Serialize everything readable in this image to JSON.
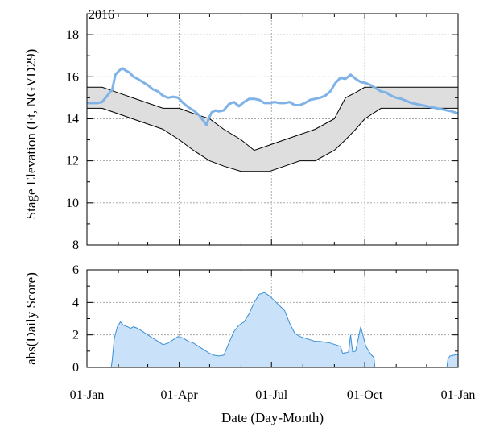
{
  "chart_data": [
    {
      "type": "line",
      "title": "2016",
      "ylabel": "Stage Elevation (Ft, NGVD29)",
      "xlabel": "",
      "xlim": [
        0,
        366
      ],
      "ylim": [
        8,
        19
      ],
      "yticks": [
        8,
        10,
        12,
        14,
        16,
        18
      ],
      "grid": true,
      "envelope": {
        "x": [
          0,
          15,
          30,
          45,
          60,
          75,
          91,
          105,
          121,
          135,
          152,
          165,
          180,
          195,
          210,
          225,
          244,
          255,
          265,
          274,
          290,
          305,
          320,
          335,
          350,
          366
        ],
        "upper": [
          15.5,
          15.5,
          15.25,
          15.0,
          14.75,
          14.5,
          14.5,
          14.25,
          14.0,
          13.5,
          13.0,
          12.5,
          12.75,
          13.0,
          13.25,
          13.5,
          14.0,
          15.0,
          15.25,
          15.5,
          15.5,
          15.5,
          15.5,
          15.5,
          15.5,
          15.5
        ],
        "lower": [
          14.5,
          14.5,
          14.25,
          14.0,
          13.75,
          13.5,
          13.0,
          12.5,
          12.0,
          11.75,
          11.5,
          11.5,
          11.5,
          11.75,
          12.0,
          12.0,
          12.5,
          13.0,
          13.5,
          14.0,
          14.5,
          14.5,
          14.5,
          14.5,
          14.5,
          14.5
        ]
      },
      "series": [
        {
          "color": "#7fb3e8",
          "x": [
            0,
            10,
            15,
            20,
            25,
            28,
            32,
            35,
            38,
            42,
            46,
            50,
            55,
            60,
            65,
            70,
            75,
            80,
            85,
            90,
            95,
            100,
            105,
            110,
            115,
            118,
            120,
            123,
            127,
            130,
            135,
            140,
            145,
            150,
            155,
            160,
            165,
            170,
            175,
            180,
            185,
            190,
            195,
            200,
            205,
            210,
            215,
            220,
            225,
            230,
            235,
            240,
            245,
            250,
            255,
            260,
            265,
            270,
            275,
            280,
            285,
            290,
            295,
            300,
            305,
            310,
            315,
            320,
            325,
            330,
            335,
            340,
            345,
            350,
            355,
            360,
            366
          ],
          "y": [
            14.75,
            14.75,
            14.8,
            15.1,
            15.4,
            16.1,
            16.3,
            16.4,
            16.3,
            16.2,
            16.0,
            15.9,
            15.75,
            15.6,
            15.4,
            15.3,
            15.1,
            15.0,
            15.05,
            15.0,
            14.75,
            14.55,
            14.4,
            14.2,
            13.9,
            13.7,
            14.0,
            14.3,
            14.4,
            14.35,
            14.4,
            14.7,
            14.8,
            14.6,
            14.8,
            14.95,
            14.95,
            14.9,
            14.75,
            14.75,
            14.8,
            14.75,
            14.75,
            14.8,
            14.65,
            14.65,
            14.75,
            14.9,
            14.95,
            15.0,
            15.1,
            15.3,
            15.7,
            15.95,
            15.9,
            16.1,
            15.9,
            15.75,
            15.7,
            15.6,
            15.45,
            15.3,
            15.25,
            15.1,
            15.0,
            14.95,
            14.85,
            14.75,
            14.7,
            14.65,
            14.6,
            14.55,
            14.5,
            14.45,
            14.4,
            14.35,
            14.25
          ]
        }
      ]
    },
    {
      "type": "area",
      "title": "",
      "ylabel": "abs(Daily Score)",
      "xlabel": "Date (Day-Month)",
      "xlim": [
        0,
        366
      ],
      "ylim": [
        0,
        6
      ],
      "yticks": [
        0,
        2,
        4,
        6
      ],
      "grid": true,
      "categories": [
        "01-Jan",
        "01-Apr",
        "01-Jul",
        "01-Oct",
        "01-Jan"
      ],
      "category_x": [
        0,
        91,
        182,
        274,
        366
      ],
      "minor_x": [
        31,
        60,
        121,
        152,
        213,
        244,
        305,
        335
      ],
      "series": [
        {
          "color": "#c9e2fa",
          "x": [
            0,
            24,
            25,
            27,
            30,
            33,
            36,
            40,
            43,
            46,
            50,
            55,
            60,
            65,
            70,
            75,
            80,
            85,
            90,
            95,
            100,
            105,
            110,
            115,
            120,
            125,
            130,
            135,
            140,
            145,
            150,
            155,
            160,
            165,
            170,
            175,
            180,
            185,
            190,
            195,
            200,
            205,
            210,
            215,
            220,
            225,
            230,
            235,
            240,
            245,
            250,
            252,
            253,
            254,
            256,
            258,
            260,
            262,
            265,
            270,
            275,
            280,
            283,
            284,
            355,
            356,
            358,
            362,
            366
          ],
          "y": [
            0,
            0,
            0.5,
            1.8,
            2.5,
            2.8,
            2.6,
            2.5,
            2.4,
            2.5,
            2.4,
            2.2,
            2.0,
            1.8,
            1.6,
            1.4,
            1.5,
            1.7,
            1.9,
            1.8,
            1.6,
            1.5,
            1.3,
            1.1,
            0.9,
            0.75,
            0.7,
            0.75,
            1.5,
            2.2,
            2.6,
            2.8,
            3.3,
            4.0,
            4.5,
            4.6,
            4.4,
            4.1,
            3.8,
            3.5,
            2.7,
            2.1,
            1.9,
            1.8,
            1.7,
            1.6,
            1.6,
            1.55,
            1.5,
            1.4,
            1.3,
            0.9,
            0.85,
            0.9,
            0.9,
            0.95,
            2.0,
            0.95,
            1.0,
            2.5,
            1.3,
            0.8,
            0.6,
            0,
            0,
            0.5,
            0.7,
            0.75,
            0.8
          ]
        }
      ]
    }
  ]
}
